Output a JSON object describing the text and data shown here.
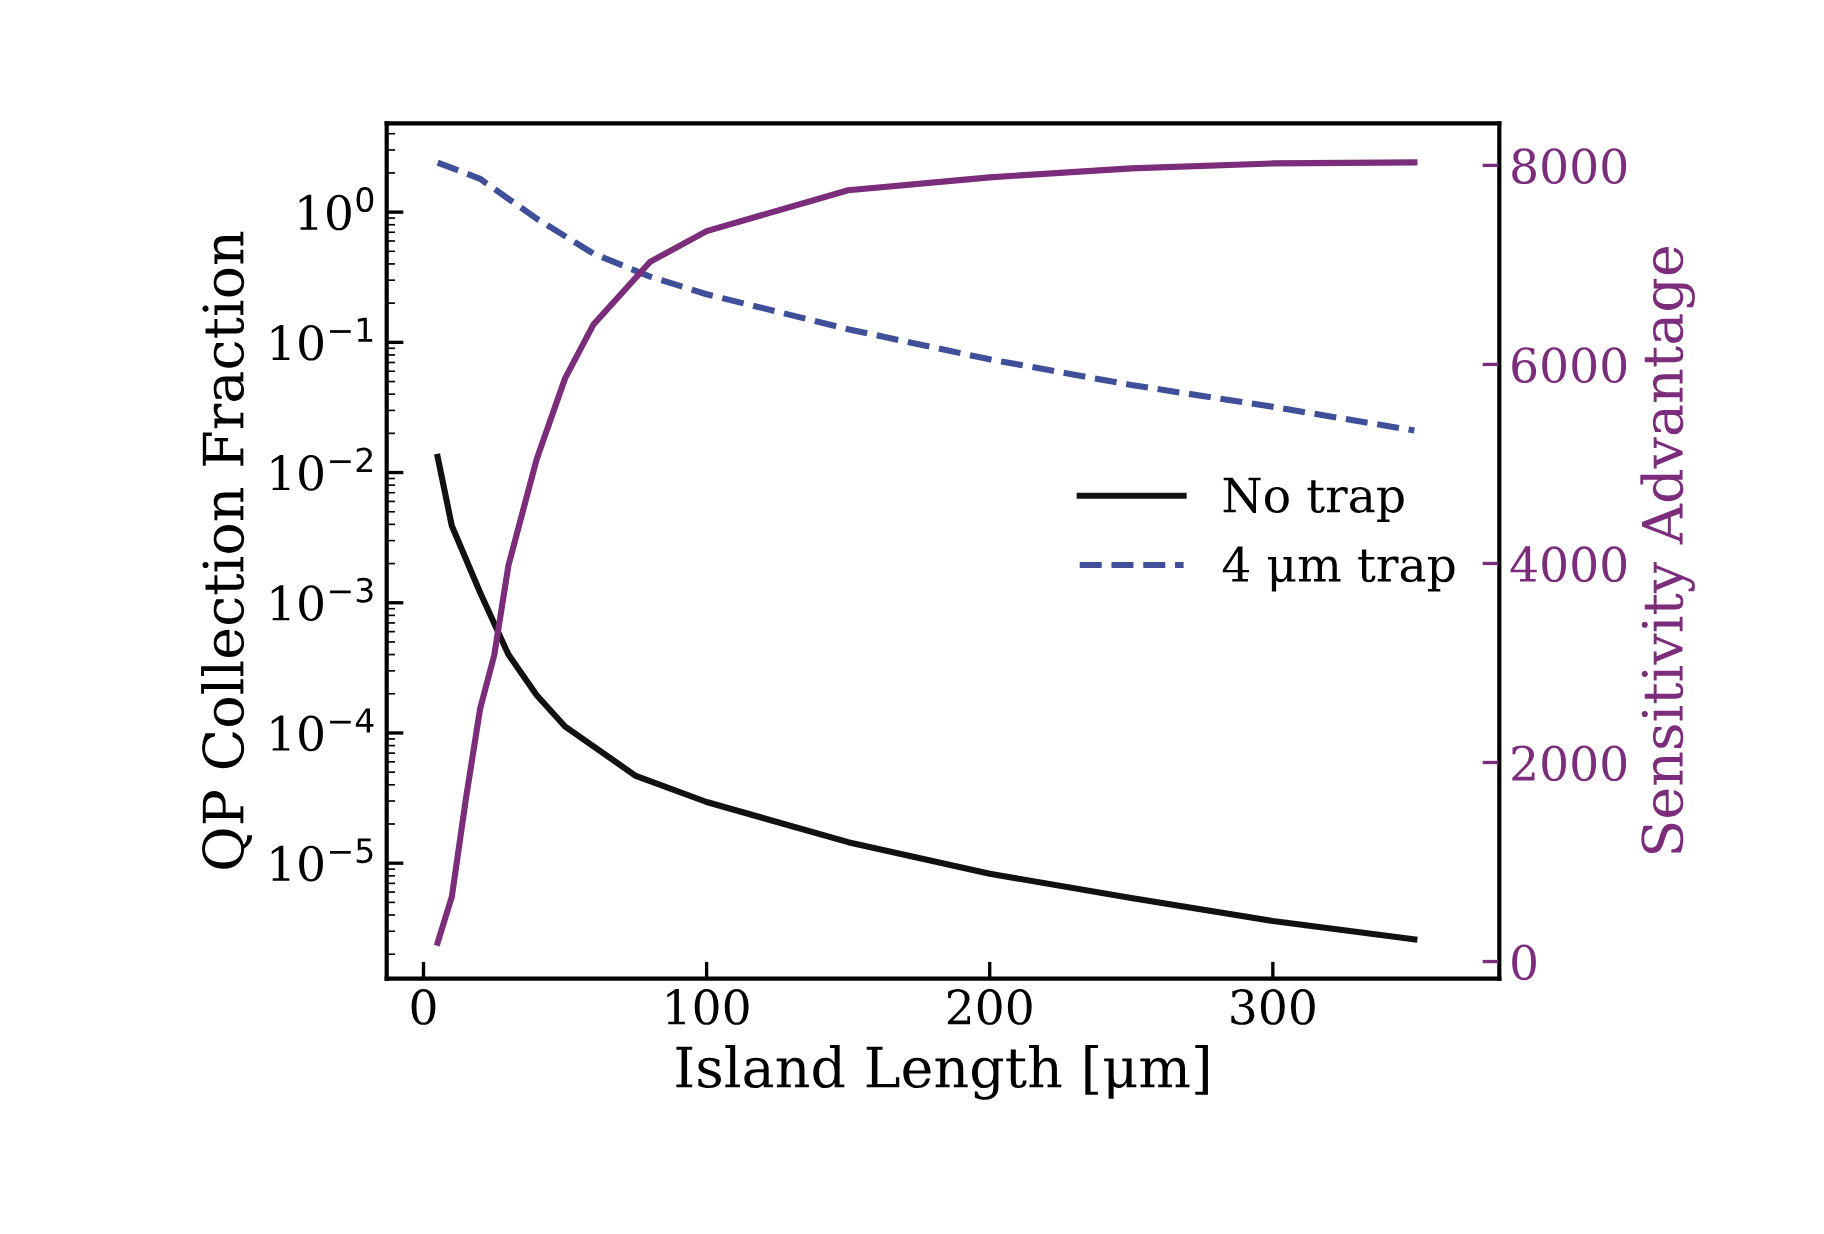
{
  "chart_data": {
    "type": "line",
    "xlabel": "Island Length [μm]",
    "ylabel": "QP Collection Fraction",
    "y2label": "Sensitivity Advantage",
    "log": "y",
    "xlim": [
      -13,
      380
    ],
    "xticks": [
      0,
      100,
      200,
      300
    ],
    "ylim": [
      1.3e-06,
      4.8
    ],
    "yticks": [
      {
        "value": 1e-05,
        "label": "10$^{−5}$"
      },
      {
        "value": 0.0001,
        "label": "10$^{−4}$"
      },
      {
        "value": 0.001,
        "label": "10$^{−3}$"
      },
      {
        "value": 0.01,
        "label": "10$^{−2}$"
      },
      {
        "value": 0.1,
        "label": "10$^{−1}$"
      },
      {
        "value": 1,
        "label": "10$^{0}$"
      }
    ],
    "y2lim": [
      -171,
      8422
    ],
    "y2ticks": [
      0,
      2000,
      4000,
      6000,
      8000
    ],
    "grid": false,
    "legend": "right",
    "marker": "none",
    "series": [
      {
        "name": "No trap",
        "color": "#111111",
        "line_style": "solid",
        "x": [
          5,
          10,
          20,
          30,
          40,
          50,
          75,
          100,
          150,
          200,
          250,
          300,
          350
        ],
        "values": [
          0.0132,
          0.0039,
          0.0012,
          0.0004,
          0.000195,
          0.000112,
          4.68e-05,
          2.95e-05,
          1.45e-05,
          8.3e-06,
          5.4e-06,
          3.6e-06,
          2.6e-06
        ]
      },
      {
        "name": "4 μm trap",
        "color": "#3f4f9a",
        "line_style": "dashed",
        "x": [
          5,
          20,
          40,
          60,
          80,
          100,
          150,
          200,
          250,
          300,
          350
        ],
        "values": [
          2.4,
          1.8,
          0.89,
          0.48,
          0.32,
          0.234,
          0.126,
          0.074,
          0.047,
          0.032,
          0.021
        ]
      },
      {
        "color": "#7b2d7b",
        "line_style": "solid",
        "axis": "y2",
        "x": [
          5,
          10,
          15,
          20,
          25,
          30,
          40,
          50,
          60,
          80,
          100,
          150,
          200,
          250,
          300,
          350
        ],
        "values": [
          190,
          650,
          1640,
          2540,
          3080,
          3980,
          5050,
          5860,
          6400,
          7030,
          7340,
          7750,
          7880,
          7970,
          8020,
          8030
        ]
      }
    ]
  }
}
